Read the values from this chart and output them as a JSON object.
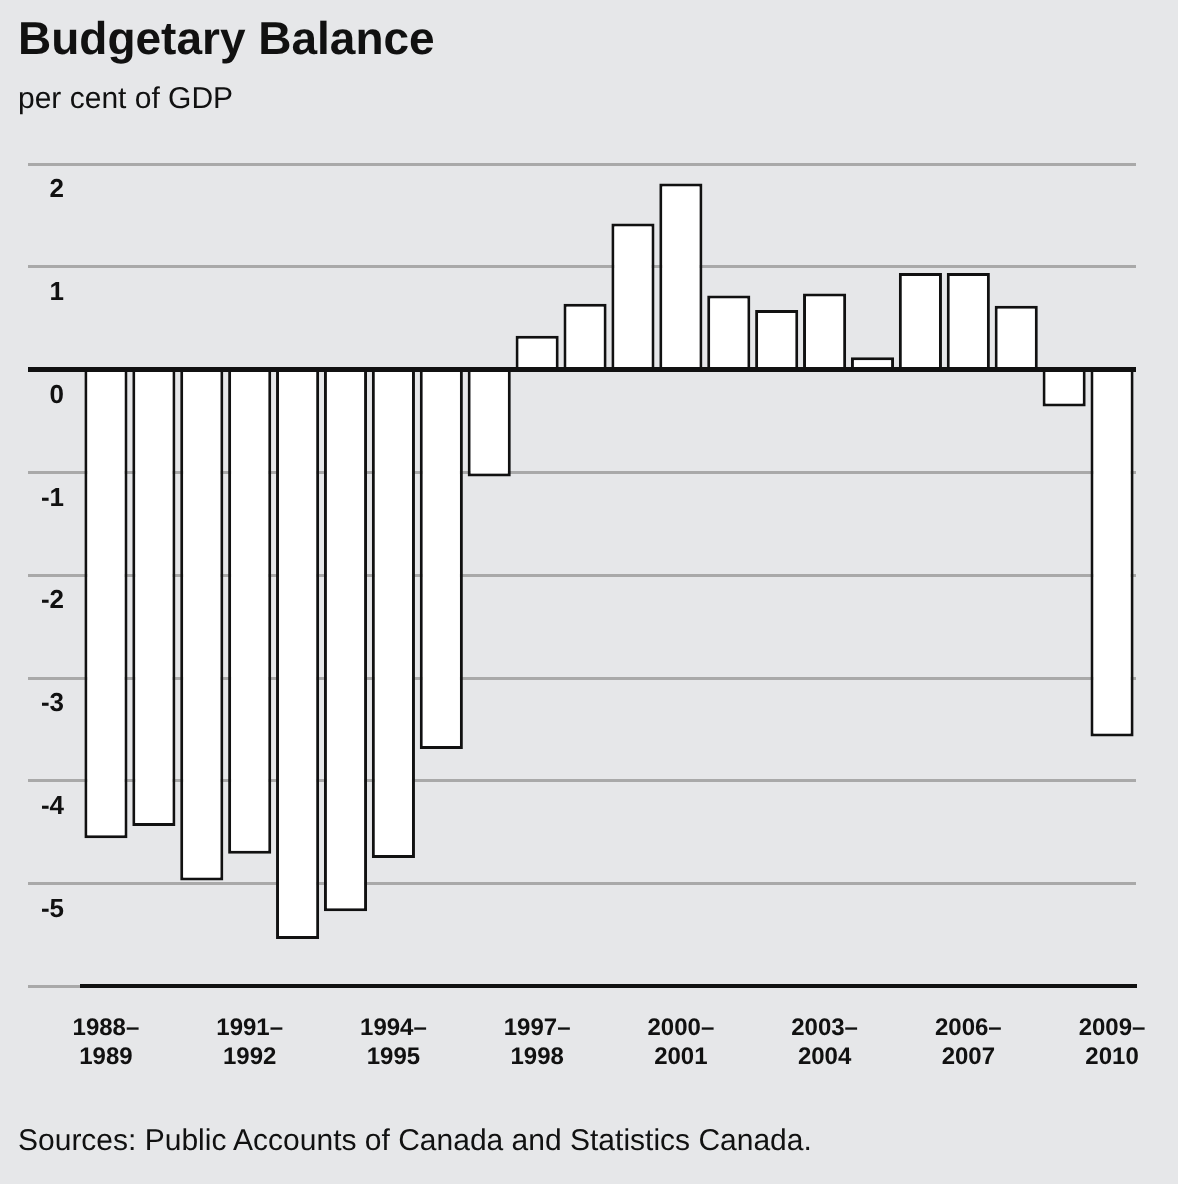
{
  "chart_data": {
    "type": "bar",
    "title": "Budgetary Balance",
    "subtitle": "per cent of GDP",
    "categories": [
      "1988–1989",
      null,
      null,
      "1991–1992",
      null,
      null,
      "1994–1995",
      null,
      null,
      "1997–1998",
      null,
      null,
      "2000–2001",
      null,
      null,
      "2003–2004",
      null,
      null,
      "2006–2007",
      null,
      null,
      "2009–2010"
    ],
    "values": [
      -4.56,
      -4.44,
      -4.97,
      -4.71,
      -5.54,
      -5.27,
      -4.75,
      -3.69,
      -1.04,
      0.33,
      0.64,
      1.42,
      1.81,
      0.72,
      0.58,
      0.74,
      0.12,
      0.94,
      0.94,
      0.62,
      -0.36,
      -3.57
    ],
    "color": "#ffffff",
    "ylim": [
      -6,
      2
    ],
    "yticks": [
      {
        "value": -6,
        "label": null
      },
      -5,
      -4,
      -3,
      -2,
      -1,
      0,
      1,
      2
    ],
    "grid": "y",
    "legend": false,
    "annotations": [
      "Sources: Public Accounts of Canada and Statistics Canada."
    ]
  }
}
